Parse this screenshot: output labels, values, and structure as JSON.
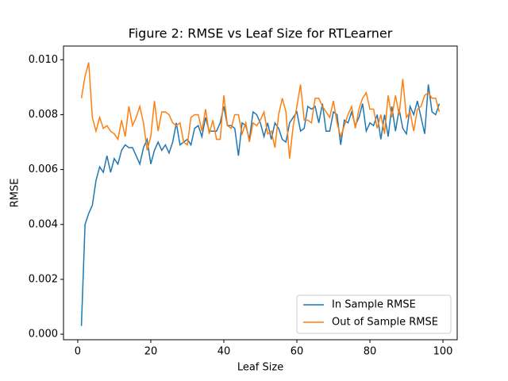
{
  "chart_data": {
    "type": "line",
    "title": "Figure 2: RMSE vs Leaf Size for RTLearner",
    "x_label": "Leaf Size",
    "y_label": "RMSE",
    "x": [
      1,
      2,
      3,
      4,
      5,
      6,
      7,
      8,
      9,
      10,
      11,
      12,
      13,
      14,
      15,
      16,
      17,
      18,
      19,
      20,
      21,
      22,
      23,
      24,
      25,
      26,
      27,
      28,
      29,
      30,
      31,
      32,
      33,
      34,
      35,
      36,
      37,
      38,
      39,
      40,
      41,
      42,
      43,
      44,
      45,
      46,
      47,
      48,
      49,
      50,
      51,
      52,
      53,
      54,
      55,
      56,
      57,
      58,
      59,
      60,
      61,
      62,
      63,
      64,
      65,
      66,
      67,
      68,
      69,
      70,
      71,
      72,
      73,
      74,
      75,
      76,
      77,
      78,
      79,
      80,
      81,
      82,
      83,
      84,
      85,
      86,
      87,
      88,
      89,
      90,
      91,
      92,
      93,
      94,
      95,
      96,
      97,
      98,
      99
    ],
    "series": [
      {
        "name": "In Sample RMSE",
        "color": "#1f77b4",
        "values": [
          0.0003,
          0.004,
          0.0044,
          0.0047,
          0.0056,
          0.0061,
          0.0059,
          0.0065,
          0.0059,
          0.0064,
          0.0062,
          0.0067,
          0.0069,
          0.0068,
          0.0068,
          0.0065,
          0.0062,
          0.0068,
          0.0071,
          0.0062,
          0.0067,
          0.007,
          0.0067,
          0.0069,
          0.0066,
          0.007,
          0.0077,
          0.0069,
          0.007,
          0.0071,
          0.0069,
          0.0075,
          0.0076,
          0.0072,
          0.0079,
          0.0074,
          0.0074,
          0.0074,
          0.0077,
          0.0083,
          0.0076,
          0.0076,
          0.0075,
          0.0065,
          0.0077,
          0.0076,
          0.0071,
          0.0081,
          0.008,
          0.0077,
          0.0072,
          0.0077,
          0.0071,
          0.0077,
          0.0075,
          0.0071,
          0.007,
          0.0077,
          0.0079,
          0.0081,
          0.0074,
          0.0075,
          0.0083,
          0.0082,
          0.0083,
          0.0077,
          0.0084,
          0.0074,
          0.0074,
          0.0081,
          0.008,
          0.0069,
          0.0078,
          0.0077,
          0.0081,
          0.0076,
          0.0079,
          0.0084,
          0.0074,
          0.0077,
          0.0076,
          0.008,
          0.0071,
          0.008,
          0.0072,
          0.0083,
          0.0074,
          0.0082,
          0.0075,
          0.0073,
          0.0083,
          0.008,
          0.0085,
          0.0079,
          0.0073,
          0.0091,
          0.0081,
          0.008,
          0.0084
        ]
      },
      {
        "name": "Out of Sample RMSE",
        "color": "#ff7f0e",
        "values": [
          0.0086,
          0.0094,
          0.0099,
          0.0079,
          0.0074,
          0.0079,
          0.0075,
          0.0076,
          0.0074,
          0.0073,
          0.0071,
          0.0078,
          0.0072,
          0.0083,
          0.0076,
          0.0079,
          0.0083,
          0.0077,
          0.0067,
          0.0072,
          0.0085,
          0.0074,
          0.0081,
          0.0081,
          0.008,
          0.0077,
          0.0076,
          0.0077,
          0.007,
          0.0069,
          0.0079,
          0.008,
          0.008,
          0.0074,
          0.0082,
          0.0073,
          0.0078,
          0.0071,
          0.0071,
          0.0087,
          0.0076,
          0.0075,
          0.008,
          0.008,
          0.0073,
          0.0077,
          0.007,
          0.0077,
          0.0076,
          0.0078,
          0.0081,
          0.0073,
          0.0074,
          0.0068,
          0.008,
          0.0086,
          0.0081,
          0.0064,
          0.0076,
          0.0083,
          0.0091,
          0.0078,
          0.0078,
          0.0077,
          0.0086,
          0.0086,
          0.0083,
          0.0081,
          0.0079,
          0.0085,
          0.0077,
          0.0072,
          0.0076,
          0.008,
          0.0083,
          0.0075,
          0.0082,
          0.0086,
          0.0088,
          0.0082,
          0.0082,
          0.0075,
          0.008,
          0.0073,
          0.0087,
          0.0079,
          0.0087,
          0.008,
          0.0093,
          0.0079,
          0.0081,
          0.0074,
          0.0082,
          0.0083,
          0.0087,
          0.0088,
          0.0086,
          0.0086,
          0.0081
        ]
      }
    ],
    "xlim": [
      -3.9,
      103.9
    ],
    "ylim": [
      -0.0002,
      0.0105
    ],
    "xticks": [
      0,
      20,
      40,
      60,
      80,
      100
    ],
    "yticks": [
      {
        "value": 0,
        "label": "0.000"
      },
      {
        "value": 0.002,
        "label": "0.002"
      },
      {
        "value": 0.004,
        "label": "0.004"
      },
      {
        "value": 0.006,
        "label": "0.006"
      },
      {
        "value": 0.008,
        "label": "0.008"
      },
      {
        "value": 0.01,
        "label": "0.010"
      }
    ],
    "legend": "lower right"
  }
}
